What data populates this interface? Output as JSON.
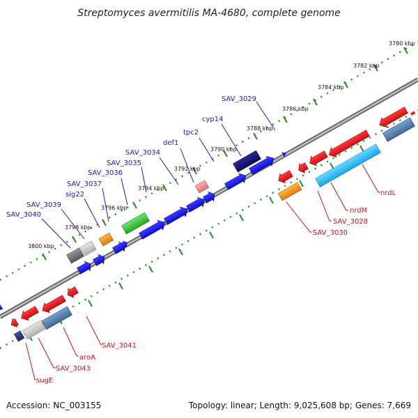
{
  "title": "Streptomyces avermitilis MA-4680, complete genome",
  "accession": "Accession: NC_003155",
  "summary": "Topology: linear; Length: 9,025,608 bp; Genes: 7,669",
  "colors": {
    "strand_plus": "#1010ee",
    "strand_minus": "#ee1111",
    "label_plus": "#1a1ab0",
    "label_minus": "#cc1111",
    "scale_dots": "#228822",
    "backbone": "#888888"
  },
  "scale_labels": [
    "3780 kbp",
    "3782 kbp",
    "3784 kbp",
    "3786 kbp",
    "3788 kbp",
    "3790 kbp",
    "3792 kbp",
    "3794 kbp",
    "3796 kbp",
    "3798 kbp",
    "3800 kbp"
  ],
  "genes_top": [
    "SAV_3029",
    "cyp14",
    "tpc2",
    "def1",
    "SAV_3034",
    "SAV_3035",
    "SAV_3036",
    "SAV_3037",
    "sig22",
    "SAV_3039",
    "SAV_3040"
  ],
  "genes_bottom": [
    "nrdL",
    "nrdM",
    "SAV_3028",
    "SAV_3030",
    "SAV_3041",
    "aroA",
    "SAV_3043",
    "sugE"
  ]
}
